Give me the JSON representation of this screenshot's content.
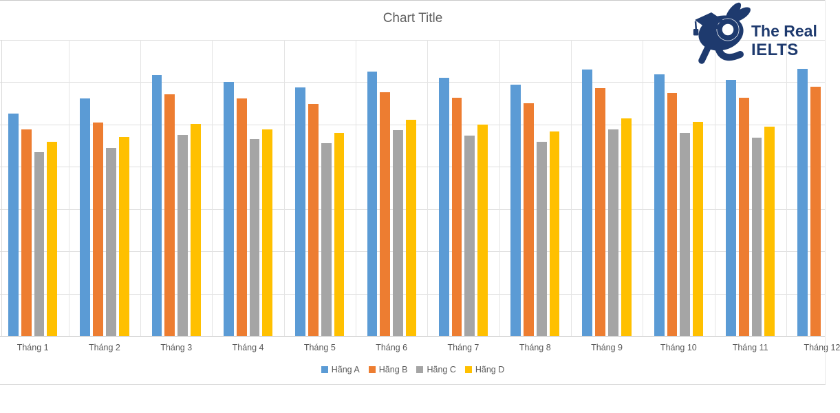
{
  "page": {
    "background": "#ffffff",
    "top_border_color": "#c9c9c9",
    "bottom_rule_color": "#d9d9d9",
    "right_edge_color": "#e8e8e8"
  },
  "chart_data": {
    "type": "bar",
    "title": "Chart Title",
    "title_color": "#5f5f5f",
    "categories": [
      "Tháng 1",
      "Tháng 2",
      "Tháng 3",
      "Tháng 4",
      "Tháng 5",
      "Tháng 6",
      "Tháng 7",
      "Tháng 8",
      "Tháng 9",
      "Tháng 10",
      "Tháng 11",
      "Tháng 12"
    ],
    "series": [
      {
        "name": "Hãng A",
        "color": "#5B9BD5",
        "values": [
          52.6,
          56.1,
          61.7,
          60.1,
          58.8,
          62.5,
          61.0,
          59.4,
          63.0,
          61.9,
          60.5,
          63.2
        ]
      },
      {
        "name": "Hãng B",
        "color": "#ED7D31",
        "values": [
          48.9,
          50.4,
          57.1,
          56.1,
          54.9,
          57.6,
          56.4,
          55.1,
          58.6,
          57.5,
          56.4,
          58.9
        ]
      },
      {
        "name": "Hãng C",
        "color": "#A5A5A5",
        "values": [
          43.5,
          44.5,
          47.5,
          46.5,
          45.6,
          48.6,
          47.3,
          45.9,
          48.9,
          48.0,
          46.9,
          null
        ]
      },
      {
        "name": "Hãng D",
        "color": "#FFC000",
        "values": [
          45.9,
          47.0,
          50.2,
          48.9,
          48.0,
          51.1,
          50.0,
          48.4,
          51.5,
          50.6,
          49.5,
          null
        ]
      }
    ],
    "xlabel": "",
    "ylabel": "",
    "ylim": [
      0,
      70
    ],
    "gridline_step": 10,
    "grid": true,
    "value_axis_labels_visible": false,
    "legend_position": "bottom",
    "axis_label_color": "#595959",
    "gridline_color": "#dedede",
    "axis_line_color": "#c6c6c6",
    "right_edge_clipped": true
  },
  "logo": {
    "icon": "rabbit-graduation-cap-icon",
    "text_line1": "The Real",
    "text_line2": "IELTS",
    "color": "#1e3a6e"
  }
}
